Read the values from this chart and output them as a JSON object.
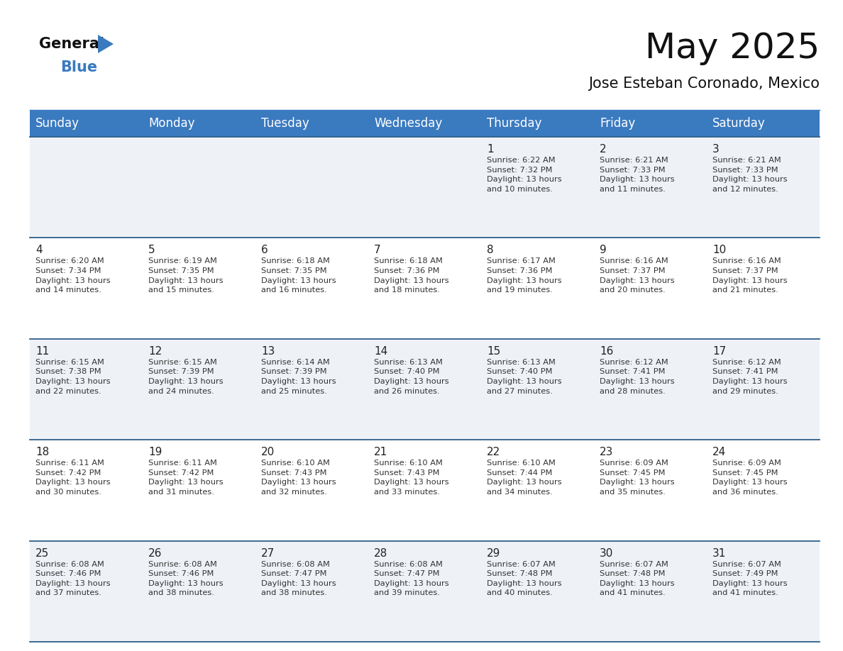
{
  "title": "May 2025",
  "subtitle": "Jose Esteban Coronado, Mexico",
  "header_bg": "#3a7abf",
  "header_text": "#ffffff",
  "row0_bg": "#eef2f7",
  "row1_bg": "#ffffff",
  "separator_color": "#2e5f8a",
  "day_headers": [
    "Sunday",
    "Monday",
    "Tuesday",
    "Wednesday",
    "Thursday",
    "Friday",
    "Saturday"
  ],
  "weeks": [
    [
      {
        "day": "",
        "info": ""
      },
      {
        "day": "",
        "info": ""
      },
      {
        "day": "",
        "info": ""
      },
      {
        "day": "",
        "info": ""
      },
      {
        "day": "1",
        "info": "Sunrise: 6:22 AM\nSunset: 7:32 PM\nDaylight: 13 hours\nand 10 minutes."
      },
      {
        "day": "2",
        "info": "Sunrise: 6:21 AM\nSunset: 7:33 PM\nDaylight: 13 hours\nand 11 minutes."
      },
      {
        "day": "3",
        "info": "Sunrise: 6:21 AM\nSunset: 7:33 PM\nDaylight: 13 hours\nand 12 minutes."
      }
    ],
    [
      {
        "day": "4",
        "info": "Sunrise: 6:20 AM\nSunset: 7:34 PM\nDaylight: 13 hours\nand 14 minutes."
      },
      {
        "day": "5",
        "info": "Sunrise: 6:19 AM\nSunset: 7:35 PM\nDaylight: 13 hours\nand 15 minutes."
      },
      {
        "day": "6",
        "info": "Sunrise: 6:18 AM\nSunset: 7:35 PM\nDaylight: 13 hours\nand 16 minutes."
      },
      {
        "day": "7",
        "info": "Sunrise: 6:18 AM\nSunset: 7:36 PM\nDaylight: 13 hours\nand 18 minutes."
      },
      {
        "day": "8",
        "info": "Sunrise: 6:17 AM\nSunset: 7:36 PM\nDaylight: 13 hours\nand 19 minutes."
      },
      {
        "day": "9",
        "info": "Sunrise: 6:16 AM\nSunset: 7:37 PM\nDaylight: 13 hours\nand 20 minutes."
      },
      {
        "day": "10",
        "info": "Sunrise: 6:16 AM\nSunset: 7:37 PM\nDaylight: 13 hours\nand 21 minutes."
      }
    ],
    [
      {
        "day": "11",
        "info": "Sunrise: 6:15 AM\nSunset: 7:38 PM\nDaylight: 13 hours\nand 22 minutes."
      },
      {
        "day": "12",
        "info": "Sunrise: 6:15 AM\nSunset: 7:39 PM\nDaylight: 13 hours\nand 24 minutes."
      },
      {
        "day": "13",
        "info": "Sunrise: 6:14 AM\nSunset: 7:39 PM\nDaylight: 13 hours\nand 25 minutes."
      },
      {
        "day": "14",
        "info": "Sunrise: 6:13 AM\nSunset: 7:40 PM\nDaylight: 13 hours\nand 26 minutes."
      },
      {
        "day": "15",
        "info": "Sunrise: 6:13 AM\nSunset: 7:40 PM\nDaylight: 13 hours\nand 27 minutes."
      },
      {
        "day": "16",
        "info": "Sunrise: 6:12 AM\nSunset: 7:41 PM\nDaylight: 13 hours\nand 28 minutes."
      },
      {
        "day": "17",
        "info": "Sunrise: 6:12 AM\nSunset: 7:41 PM\nDaylight: 13 hours\nand 29 minutes."
      }
    ],
    [
      {
        "day": "18",
        "info": "Sunrise: 6:11 AM\nSunset: 7:42 PM\nDaylight: 13 hours\nand 30 minutes."
      },
      {
        "day": "19",
        "info": "Sunrise: 6:11 AM\nSunset: 7:42 PM\nDaylight: 13 hours\nand 31 minutes."
      },
      {
        "day": "20",
        "info": "Sunrise: 6:10 AM\nSunset: 7:43 PM\nDaylight: 13 hours\nand 32 minutes."
      },
      {
        "day": "21",
        "info": "Sunrise: 6:10 AM\nSunset: 7:43 PM\nDaylight: 13 hours\nand 33 minutes."
      },
      {
        "day": "22",
        "info": "Sunrise: 6:10 AM\nSunset: 7:44 PM\nDaylight: 13 hours\nand 34 minutes."
      },
      {
        "day": "23",
        "info": "Sunrise: 6:09 AM\nSunset: 7:45 PM\nDaylight: 13 hours\nand 35 minutes."
      },
      {
        "day": "24",
        "info": "Sunrise: 6:09 AM\nSunset: 7:45 PM\nDaylight: 13 hours\nand 36 minutes."
      }
    ],
    [
      {
        "day": "25",
        "info": "Sunrise: 6:08 AM\nSunset: 7:46 PM\nDaylight: 13 hours\nand 37 minutes."
      },
      {
        "day": "26",
        "info": "Sunrise: 6:08 AM\nSunset: 7:46 PM\nDaylight: 13 hours\nand 38 minutes."
      },
      {
        "day": "27",
        "info": "Sunrise: 6:08 AM\nSunset: 7:47 PM\nDaylight: 13 hours\nand 38 minutes."
      },
      {
        "day": "28",
        "info": "Sunrise: 6:08 AM\nSunset: 7:47 PM\nDaylight: 13 hours\nand 39 minutes."
      },
      {
        "day": "29",
        "info": "Sunrise: 6:07 AM\nSunset: 7:48 PM\nDaylight: 13 hours\nand 40 minutes."
      },
      {
        "day": "30",
        "info": "Sunrise: 6:07 AM\nSunset: 7:48 PM\nDaylight: 13 hours\nand 41 minutes."
      },
      {
        "day": "31",
        "info": "Sunrise: 6:07 AM\nSunset: 7:49 PM\nDaylight: 13 hours\nand 41 minutes."
      }
    ]
  ],
  "title_fontsize": 36,
  "subtitle_fontsize": 15,
  "header_fontsize": 12,
  "day_num_fontsize": 11,
  "cell_text_fontsize": 8.2,
  "logo_general_color": "#111111",
  "logo_blue_color": "#3a7abf",
  "logo_triangle_color": "#3a7abf"
}
